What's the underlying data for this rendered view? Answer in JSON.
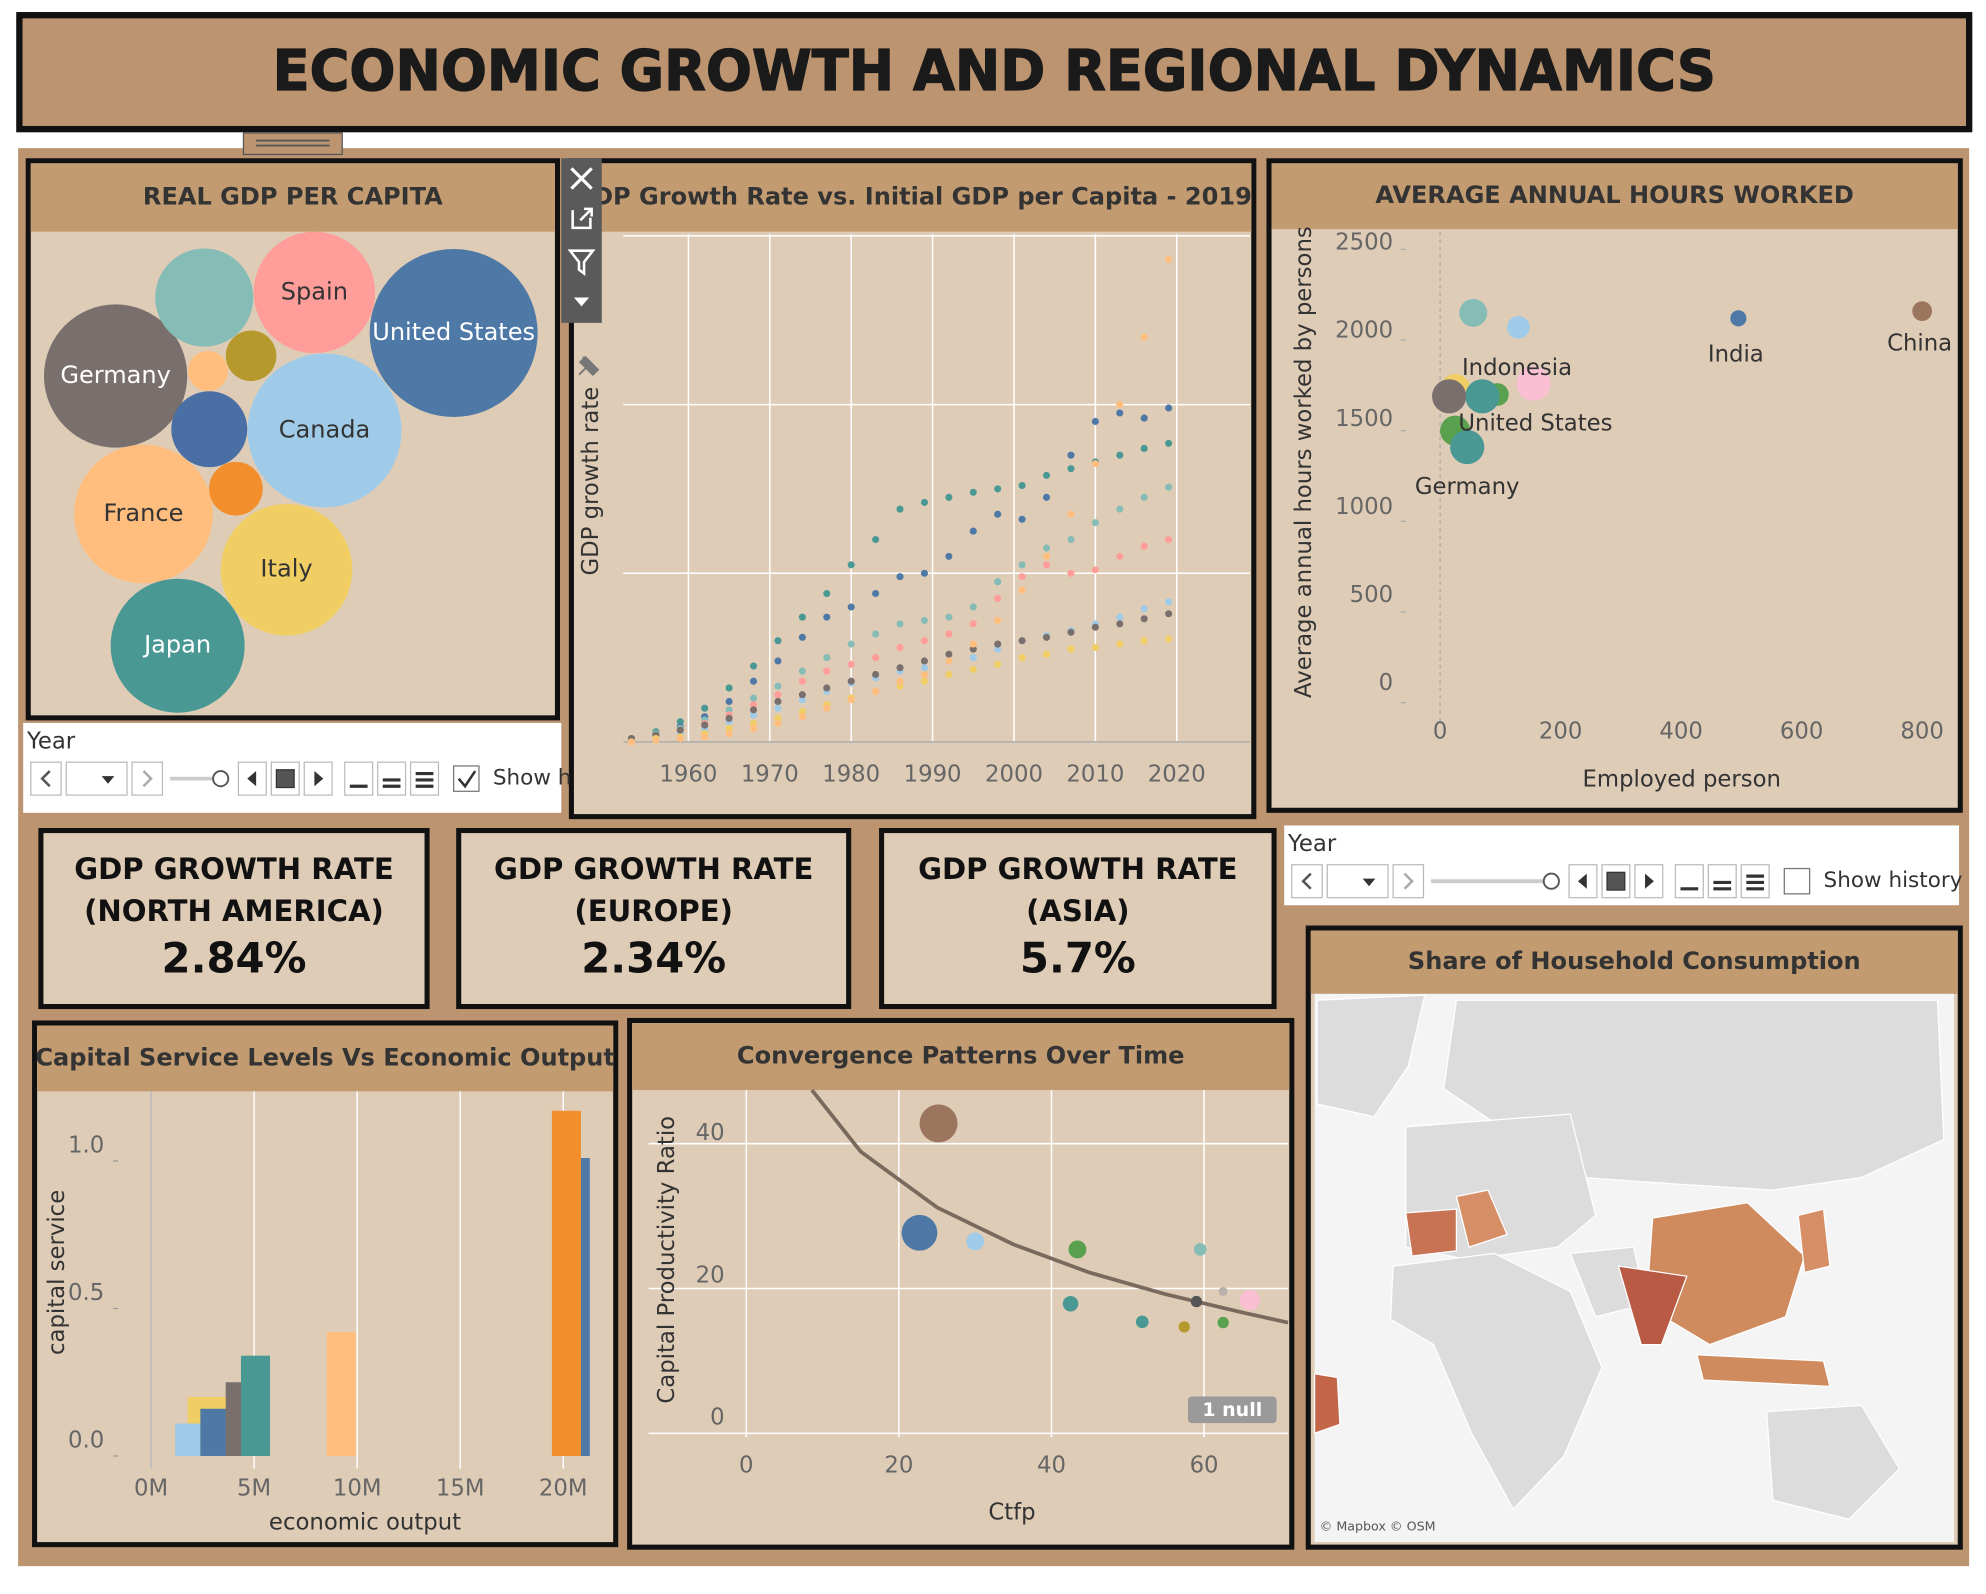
{
  "header": {
    "title": "ECONOMIC GROWTH AND REGIONAL DYNAMICS"
  },
  "chart_data": [
    {
      "type": "packed-bubble",
      "title": "REAL GDP PER CAPITA",
      "categories": [
        "Spain",
        "United States",
        "Germany",
        "Canada",
        "France",
        "Italy",
        "Japan",
        null,
        null,
        null,
        null,
        null
      ],
      "values": [
        23,
        44,
        32,
        37,
        30,
        27,
        28,
        15,
        9,
        4.5,
        4,
        2.5
      ],
      "colors": [
        "#ff9d9a",
        "#4e79a7",
        "#79706e",
        "#a0cbe8",
        "#ffbe7d",
        "#f1ce63",
        "#499894",
        "#86bcb6",
        "#4a6fa5",
        "#f28e2b",
        "#b6992d",
        "#ffbe7d"
      ]
    },
    {
      "type": "dot-line",
      "title": "GDP Growth Rate vs. Initial GDP per Capita - 2019",
      "y_label": "GDP growth rate",
      "x": [
        1953,
        1956,
        1959,
        1962,
        1965,
        1968,
        1971,
        1974,
        1977,
        1980,
        1983,
        1986,
        1989,
        1992,
        1995,
        1998,
        2001,
        2004,
        2007,
        2010,
        2013,
        2016,
        2019
      ],
      "xlim": [
        1952,
        2029
      ],
      "xticks": [
        1960,
        1970,
        1980,
        1990,
        2000,
        2010,
        2020
      ],
      "ylim": [
        0,
        3.01
      ],
      "yticks": [
        0,
        1,
        2,
        3
      ],
      "grid": true,
      "series": [
        {
          "color": "#499894",
          "values": [
            0.02,
            0.06,
            0.12,
            0.2,
            0.32,
            0.45,
            0.6,
            0.74,
            0.88,
            1.05,
            1.2,
            1.38,
            1.42,
            1.45,
            1.48,
            1.5,
            1.52,
            1.58,
            1.62,
            1.66,
            1.7,
            1.74,
            1.77
          ]
        },
        {
          "color": "#4e79a7",
          "values": [
            0.02,
            0.05,
            0.09,
            0.15,
            0.24,
            0.36,
            0.48,
            0.62,
            0.74,
            0.8,
            0.88,
            0.98,
            1.0,
            1.1,
            1.25,
            1.35,
            1.32,
            1.45,
            1.7,
            1.9,
            1.95,
            1.92,
            1.98
          ]
        },
        {
          "color": "#86bcb6",
          "values": [
            0.02,
            0.05,
            0.08,
            0.13,
            0.19,
            0.26,
            0.33,
            0.42,
            0.5,
            0.58,
            0.64,
            0.7,
            0.72,
            0.74,
            0.8,
            0.95,
            1.05,
            1.15,
            1.2,
            1.3,
            1.38,
            1.45,
            1.51
          ]
        },
        {
          "color": "#ff9d9a",
          "values": [
            0.02,
            0.04,
            0.07,
            0.11,
            0.16,
            0.22,
            0.28,
            0.36,
            0.42,
            0.46,
            0.5,
            0.56,
            0.6,
            0.64,
            0.7,
            0.85,
            0.98,
            1.05,
            1.0,
            1.02,
            1.1,
            1.16,
            1.2
          ]
        },
        {
          "color": "#a0cbe8",
          "values": [
            0.01,
            0.03,
            0.05,
            0.08,
            0.12,
            0.16,
            0.2,
            0.25,
            0.3,
            0.35,
            0.38,
            0.42,
            0.44,
            0.48,
            0.5,
            0.55,
            0.6,
            0.63,
            0.66,
            0.7,
            0.74,
            0.79,
            0.83
          ]
        },
        {
          "color": "#79706e",
          "values": [
            0.02,
            0.04,
            0.07,
            0.1,
            0.14,
            0.19,
            0.24,
            0.28,
            0.32,
            0.36,
            0.4,
            0.44,
            0.48,
            0.52,
            0.55,
            0.58,
            0.6,
            0.62,
            0.65,
            0.68,
            0.7,
            0.73,
            0.76
          ]
        },
        {
          "color": "#f1ce63",
          "values": [
            0.0,
            0.02,
            0.03,
            0.05,
            0.08,
            0.11,
            0.14,
            0.18,
            0.22,
            0.26,
            0.3,
            0.33,
            0.36,
            0.4,
            0.43,
            0.46,
            0.5,
            0.52,
            0.55,
            0.56,
            0.58,
            0.6,
            0.61
          ]
        },
        {
          "color": "#ffbe7d",
          "values": [
            0.0,
            0.01,
            0.02,
            0.03,
            0.05,
            0.08,
            0.11,
            0.15,
            0.2,
            0.25,
            0.3,
            0.36,
            0.4,
            0.48,
            0.58,
            0.72,
            0.9,
            1.1,
            1.35,
            1.65,
            2.0,
            2.4,
            2.86
          ]
        }
      ]
    },
    {
      "type": "scatter",
      "title": "AVERAGE ANNUAL HOURS WORKED",
      "x_label": "Employed person",
      "y_label": "Average annual hours worked by persons",
      "xlim": [
        -57,
        857
      ],
      "ylim": [
        -105,
        2598
      ],
      "xticks": [
        0,
        200,
        400,
        600,
        800
      ],
      "yticks": [
        0,
        500,
        1000,
        1500,
        2000,
        2500
      ],
      "x": [
        800,
        495,
        55,
        130,
        155,
        25,
        95,
        70,
        15,
        25,
        45
      ],
      "values": [
        2160,
        2120,
        2150,
        2070,
        1760,
        1730,
        1700,
        1690,
        1690,
        1500,
        1410
      ],
      "sizes": [
        3,
        2,
        6,
        4,
        9,
        7,
        4,
        9,
        9,
        7,
        9
      ],
      "colors": [
        "#9c755f",
        "#4e79a7",
        "#86bcb6",
        "#a0cbe8",
        "#fabfd2",
        "#f1ce63",
        "#59a14f",
        "#499894",
        "#79706e",
        "#59a14f",
        "#499894"
      ],
      "labels": [
        "China",
        "India",
        null,
        null,
        "Indonesia",
        null,
        null,
        "United States",
        null,
        null,
        "Germany"
      ]
    },
    {
      "type": "range-bar",
      "title": "Capital Service Levels Vs Economic Output",
      "x_label": "economic output",
      "y_label": "capital service",
      "xlim": [
        -1600000,
        22300000
      ],
      "xticks": [
        {
          "value": 0,
          "label": "0M"
        },
        {
          "value": 5000000,
          "label": "5M"
        },
        {
          "value": 10000000,
          "label": "10M"
        },
        {
          "value": 15000000,
          "label": "15M"
        },
        {
          "value": 20000000,
          "label": "20M"
        }
      ],
      "ylim": [
        -0.043,
        1.236
      ],
      "yticks": [
        {
          "value": 0,
          "label": "0.0"
        },
        0.5,
        {
          "value": 1,
          "label": "1.0"
        }
      ],
      "x_start": [
        1780000,
        1170000,
        2390000,
        3620000,
        4360000,
        8530000,
        19450000,
        20860000
      ],
      "x_end": [
        3740000,
        2390000,
        3740000,
        4970000,
        5770000,
        9940000,
        20860000,
        21290000
      ],
      "values": [
        0.2,
        0.11,
        0.16,
        0.25,
        0.34,
        0.42,
        1.17,
        1.01
      ],
      "colors": [
        "#f1ce63",
        "#a0cbe8",
        "#4e79a7",
        "#79706e",
        "#499894",
        "#ffbe7d",
        "#f28e2b",
        "#4e79a7"
      ]
    },
    {
      "type": "scatter",
      "title": "Convergence Patterns Over Time",
      "x_label": "Ctfp",
      "y_label": "Capital Productivity Ratio",
      "xlim": [
        -12.8,
        71
      ],
      "ylim": [
        -0.5,
        47.4
      ],
      "xticks": [
        0,
        20,
        40,
        60
      ],
      "yticks": [
        0,
        20,
        40
      ],
      "grid": true,
      "x": [
        25.2,
        22.7,
        30.0,
        43.4,
        42.5,
        59.5,
        51.9,
        57.4,
        59.0,
        62.5,
        62.5,
        66.0
      ],
      "values": [
        42.8,
        27.7,
        26.5,
        25.4,
        17.9,
        25.4,
        15.4,
        14.7,
        18.2,
        15.3,
        19.6,
        18.4
      ],
      "sizes": [
        9,
        8,
        2,
        2,
        1.5,
        1,
        1,
        0.8,
        0.8,
        0.8,
        0.5,
        2.5
      ],
      "colors": [
        "#9c755f",
        "#4e79a7",
        "#a0cbe8",
        "#59a14f",
        "#499894",
        "#86bcb6",
        "#499894",
        "#b6992d",
        "#555555",
        "#59a14f",
        "#bab0ac",
        "#fabfd2"
      ],
      "trend": {
        "x": [
          8.6,
          15,
          25,
          35,
          45,
          55,
          65,
          71
        ],
        "y": [
          47.4,
          38.9,
          31.2,
          26.1,
          22.2,
          19.2,
          16.7,
          15.3
        ]
      },
      "annotation": "1 null"
    },
    {
      "type": "map",
      "title": "Share of Household Consumption",
      "attribution": "© Mapbox © OSM"
    }
  ],
  "kpis": [
    {
      "lines": [
        "GDP GROWTH RATE",
        "(NORTH AMERICA)"
      ],
      "value": "2.84%"
    },
    {
      "lines": [
        "GDP GROWTH RATE",
        "(EUROPE)"
      ],
      "value": "2.34%"
    },
    {
      "lines": [
        "GDP GROWTH RATE",
        "(ASIA)"
      ],
      "value": "5.7%"
    }
  ],
  "controls": [
    {
      "label": "Year",
      "option": "Show h",
      "checked": true
    },
    {
      "label": "Year",
      "option": "Show history",
      "checked": false
    }
  ]
}
